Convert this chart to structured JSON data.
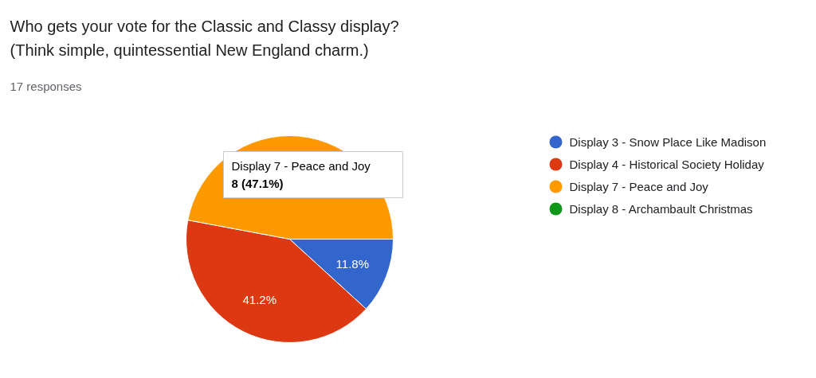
{
  "chart_data": {
    "type": "pie",
    "title": "Who gets your vote for the Classic and Classy display?\n(Think simple, quintessential New England charm.)",
    "subtitle": "17 responses",
    "categories": [
      "Display 3 - Snow Place Like Madison",
      "Display 4 - Historical Society Holiday",
      "Display 7 - Peace and Joy",
      "Display 8 - Archambault Christmas"
    ],
    "values": [
      11.8,
      41.2,
      47.1,
      0
    ],
    "colors": [
      "#3366cc",
      "#dc3912",
      "#ff9900",
      "#109618"
    ],
    "value_labels": [
      "11.8%",
      "41.2%",
      null,
      null
    ],
    "annotations": [
      "Display 7 - Peace and Joy",
      "8 (47.1%)"
    ],
    "legend": "right"
  }
}
